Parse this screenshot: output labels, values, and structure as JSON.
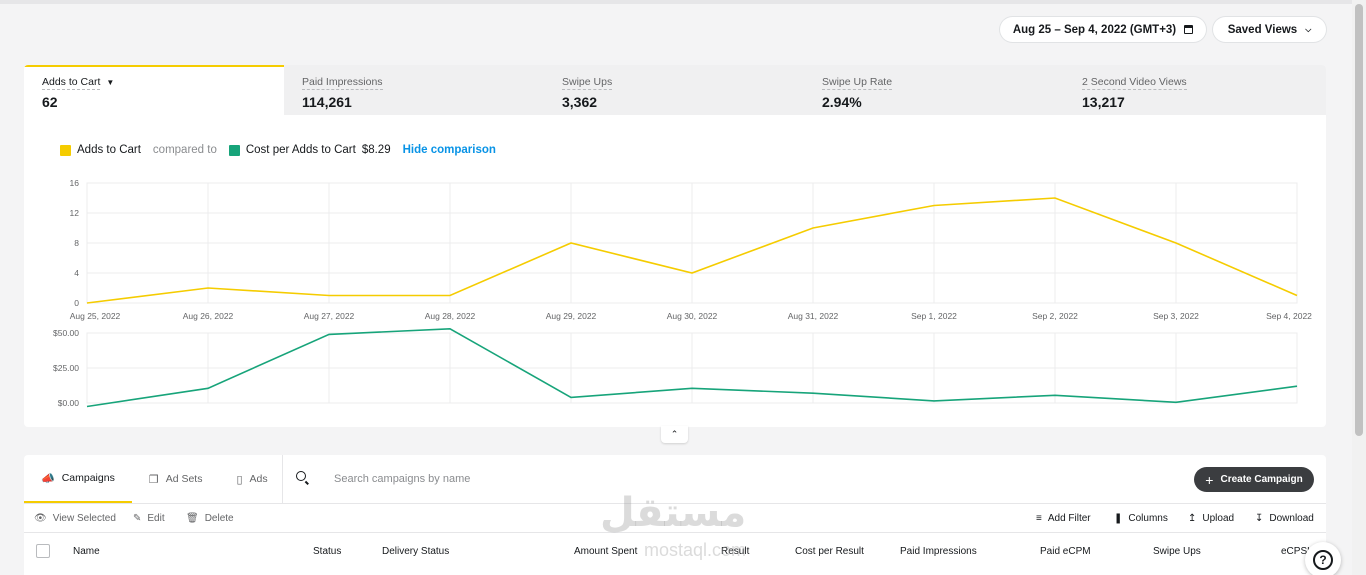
{
  "header": {
    "date_range": "Aug 25 – Sep 4, 2022 (GMT+3)",
    "saved_views": "Saved Views"
  },
  "metric_tabs": [
    {
      "label": "Adds to Cart",
      "value": "62"
    },
    {
      "label": "Paid Impressions",
      "value": "114,261"
    },
    {
      "label": "Swipe Ups",
      "value": "3,362"
    },
    {
      "label": "Swipe Up Rate",
      "value": "2.94%"
    },
    {
      "label": "2 Second Video Views",
      "value": "13,217"
    }
  ],
  "legend": {
    "primary": "Adds to Cart",
    "compared_to": "compared to",
    "secondary": "Cost per Adds to Cart",
    "secondary_value": "$8.29",
    "hide_link": "Hide comparison"
  },
  "colors": {
    "primary_series": "#f5cc00",
    "secondary_series": "#17a47a",
    "accent_link": "#0893e6"
  },
  "chart_data": [
    {
      "type": "line",
      "x": [
        "Aug 25, 2022",
        "Aug 26, 2022",
        "Aug 27, 2022",
        "Aug 28, 2022",
        "Aug 29, 2022",
        "Aug 30, 2022",
        "Aug 31, 2022",
        "Sep 1, 2022",
        "Sep 2, 2022",
        "Sep 3, 2022",
        "Sep 4, 2022"
      ],
      "series": [
        {
          "name": "Adds to Cart",
          "values": [
            0,
            2,
            1,
            1,
            8,
            4,
            10,
            13,
            14,
            8,
            1
          ]
        }
      ],
      "yticks": [
        "0",
        "4",
        "8",
        "12",
        "16"
      ],
      "ylim": [
        0,
        16
      ],
      "grid": true
    },
    {
      "type": "line",
      "x": [
        "Aug 25, 2022",
        "Aug 26, 2022",
        "Aug 27, 2022",
        "Aug 28, 2022",
        "Aug 29, 2022",
        "Aug 30, 2022",
        "Aug 31, 2022",
        "Sep 1, 2022",
        "Sep 2, 2022",
        "Sep 3, 2022",
        "Sep 4, 2022"
      ],
      "series": [
        {
          "name": "Cost per Adds to Cart",
          "values": [
            -2.5,
            10.5,
            49,
            53,
            4,
            10.5,
            7,
            1.5,
            5.5,
            0.5,
            12
          ]
        }
      ],
      "yticks": [
        "$0.00",
        "$25.00",
        "$50.00"
      ],
      "ylim": [
        0,
        50
      ],
      "grid": true
    }
  ],
  "table": {
    "tabs": [
      "Campaigns",
      "Ad Sets",
      "Ads"
    ],
    "search_placeholder": "Search campaigns by name",
    "create_button": "Create Campaign",
    "toolbar_left": [
      "View Selected",
      "Edit",
      "Delete"
    ],
    "toolbar_right": [
      "Add Filter",
      "Columns",
      "Upload",
      "Download"
    ],
    "columns": [
      "Name",
      "Status",
      "Delivery Status",
      "Amount Spent",
      "Result",
      "Cost per Result",
      "Paid Impressions",
      "Paid eCPM",
      "Swipe Ups",
      "eCPSU"
    ]
  },
  "watermark": {
    "arabic": "مستقل",
    "latin": "mostaql.com"
  }
}
